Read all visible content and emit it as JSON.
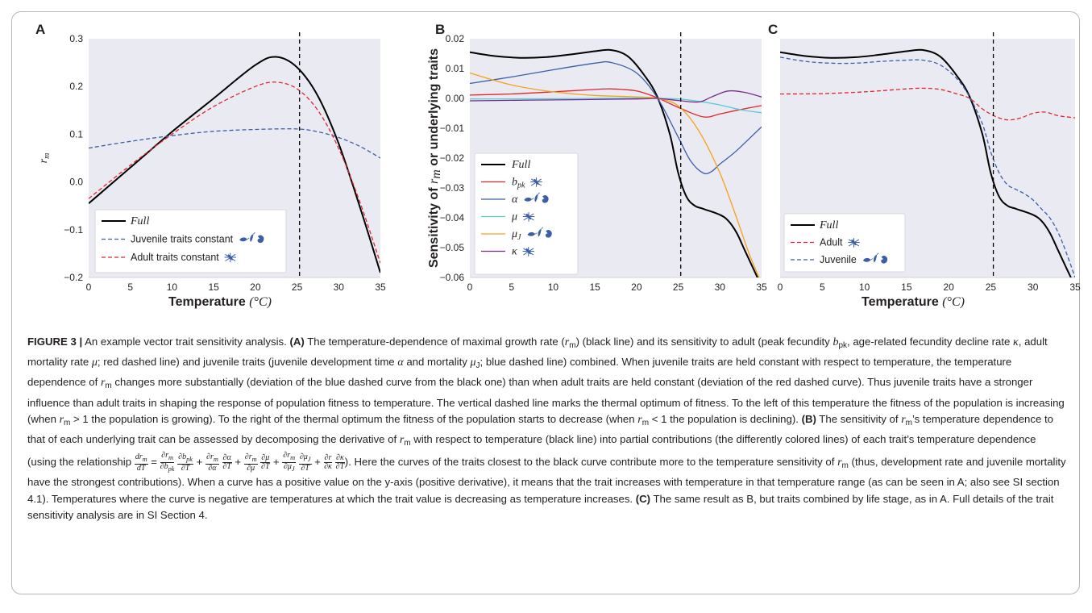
{
  "figure": {
    "panels": [
      {
        "id": "A",
        "label": "A",
        "xlabel": "Temperature",
        "xunit": "(°C)",
        "ylabel": "r_m"
      },
      {
        "id": "B",
        "label": "B",
        "xlabel": "",
        "ylabel": "Sensitivity of r_m or underlying traits"
      },
      {
        "id": "C",
        "label": "C",
        "xlabel": "Temperature",
        "xunit": "(°C)",
        "ylabel": ""
      }
    ],
    "optimum_temperature": 25.3,
    "colors": {
      "full": "#000000",
      "red": "#e0262b",
      "blue": "#3a5ea8",
      "cyan": "#5ccbd6",
      "orange": "#f6a01a",
      "purple": "#7a2a8c"
    },
    "icon_names": [
      "mosquito-larva-icon",
      "mosquito-pupa-icon",
      "adult-mosquito-icon"
    ]
  },
  "chart_data": [
    {
      "type": "line",
      "title": "",
      "xlabel": "Temperature (°C)",
      "ylabel": "r_m",
      "xlim": [
        0,
        35
      ],
      "ylim": [
        -0.2,
        0.3
      ],
      "xticks": [
        "0",
        "5",
        "10",
        "15",
        "20",
        "25",
        "30",
        "35"
      ],
      "yticks": [
        "−0.2",
        "−0.1",
        "0.0",
        "0.1",
        "0.2",
        "0.3"
      ],
      "vline": 25.3,
      "legend_position": "lower-left",
      "series": [
        {
          "name": "Full",
          "style": "solid",
          "color": "#000000",
          "x": [
            0,
            5,
            10,
            15,
            20,
            22.5,
            25,
            27.5,
            30,
            32.5,
            35
          ],
          "y": [
            -0.045,
            0.03,
            0.105,
            0.175,
            0.245,
            0.262,
            0.24,
            0.18,
            0.08,
            -0.05,
            -0.19
          ]
        },
        {
          "name": "Juvenile traits constant",
          "style": "dashed",
          "color": "#3a5ea8",
          "x": [
            0,
            5,
            10,
            15,
            20,
            25,
            27.5,
            30,
            32.5,
            35
          ],
          "y": [
            0.071,
            0.085,
            0.097,
            0.106,
            0.11,
            0.111,
            0.105,
            0.093,
            0.075,
            0.05
          ]
        },
        {
          "name": "Adult traits constant",
          "style": "dashed",
          "color": "#e0262b",
          "x": [
            0,
            5,
            10,
            15,
            20,
            22.5,
            25,
            27.5,
            30,
            32.5,
            35
          ],
          "y": [
            -0.035,
            0.035,
            0.1,
            0.158,
            0.2,
            0.209,
            0.195,
            0.15,
            0.07,
            -0.04,
            -0.17
          ]
        }
      ]
    },
    {
      "type": "line",
      "title": "",
      "xlabel": "",
      "ylabel": "Sensitivity of r_m or underlying traits",
      "xlim": [
        0,
        35
      ],
      "ylim": [
        -0.06,
        0.02
      ],
      "xticks": [
        "0",
        "5",
        "10",
        "15",
        "20",
        "25",
        "30",
        "35"
      ],
      "yticks": [
        "0.02",
        "0.01",
        "0.00",
        "−0.01",
        "−0.02",
        "−0.03",
        "−0.04",
        "−0.05",
        "−0.06"
      ],
      "vline": 25.3,
      "legend_position": "lower-left",
      "series": [
        {
          "name": "Full",
          "style": "solid",
          "color": "#000000",
          "x": [
            0,
            3,
            6,
            9,
            12,
            15,
            17,
            19,
            21,
            22.5,
            24,
            25,
            26,
            27,
            28,
            30,
            31,
            32,
            33,
            34,
            35
          ],
          "y": [
            0.0155,
            0.0142,
            0.0136,
            0.0138,
            0.0147,
            0.0158,
            0.0162,
            0.014,
            0.0075,
            0.0005,
            -0.012,
            -0.025,
            -0.033,
            -0.036,
            -0.037,
            -0.039,
            -0.041,
            -0.045,
            -0.051,
            -0.057,
            -0.063
          ]
        },
        {
          "name": "b_pk",
          "style": "solid",
          "color": "#e0262b",
          "x": [
            0,
            5,
            10,
            15,
            17,
            20,
            22.5,
            25,
            28,
            30,
            32,
            35
          ],
          "y": [
            0.0011,
            0.0015,
            0.0022,
            0.003,
            0.0032,
            0.0025,
            0.0002,
            -0.003,
            -0.0062,
            -0.0052,
            -0.004,
            -0.0024
          ]
        },
        {
          "name": "α",
          "style": "solid",
          "color": "#3a5ea8",
          "x": [
            0,
            5,
            10,
            15,
            17,
            20,
            22.5,
            25,
            26.5,
            28,
            29,
            30,
            32,
            35
          ],
          "y": [
            0.005,
            0.0072,
            0.0096,
            0.0118,
            0.012,
            0.0085,
            0.0002,
            -0.013,
            -0.021,
            -0.025,
            -0.0245,
            -0.022,
            -0.0175,
            -0.0095
          ]
        },
        {
          "name": "μ",
          "style": "solid",
          "color": "#5ccbd6",
          "x": [
            0,
            10,
            20,
            22.5,
            25,
            27.5,
            30,
            32.5,
            35
          ],
          "y": [
            -0.0002,
            -0.0001,
            0.0001,
            0.0,
            -0.0002,
            -0.001,
            -0.0022,
            -0.0038,
            -0.0048
          ]
        },
        {
          "name": "μ_J",
          "style": "solid",
          "color": "#f6a01a",
          "x": [
            0,
            5,
            10,
            15,
            20,
            22.5,
            25,
            27.5,
            30,
            32,
            33.5,
            35
          ],
          "y": [
            0.0085,
            0.0045,
            0.0022,
            0.001,
            0.0005,
            0.0,
            -0.0025,
            -0.011,
            -0.025,
            -0.04,
            -0.052,
            -0.062
          ]
        },
        {
          "name": "κ",
          "style": "solid",
          "color": "#7a2a8c",
          "x": [
            0,
            10,
            20,
            22.5,
            25,
            27.5,
            29,
            31,
            33,
            35
          ],
          "y": [
            -0.0008,
            -0.0005,
            -0.0002,
            0.0,
            -0.0007,
            -0.0012,
            0.0005,
            0.0025,
            0.002,
            0.0005
          ]
        }
      ]
    },
    {
      "type": "line",
      "title": "",
      "xlabel": "Temperature (°C)",
      "ylabel": "",
      "xlim": [
        0,
        35
      ],
      "ylim": [
        -0.06,
        0.02
      ],
      "xticks": [
        "0",
        "5",
        "10",
        "15",
        "20",
        "25",
        "30",
        "35"
      ],
      "vline": 25.3,
      "legend_position": "lower-left",
      "series": [
        {
          "name": "Full",
          "style": "solid",
          "color": "#000000",
          "x": [
            0,
            3,
            6,
            9,
            12,
            15,
            17,
            19,
            21,
            22.5,
            24,
            25,
            26,
            27,
            28,
            30,
            31,
            32,
            33,
            34,
            35
          ],
          "y": [
            0.0155,
            0.0142,
            0.0136,
            0.0138,
            0.0147,
            0.0158,
            0.0162,
            0.014,
            0.0075,
            0.0005,
            -0.012,
            -0.025,
            -0.033,
            -0.036,
            -0.037,
            -0.039,
            -0.041,
            -0.045,
            -0.051,
            -0.057,
            -0.063
          ]
        },
        {
          "name": "Adult",
          "style": "dashed",
          "color": "#e0262b",
          "x": [
            0,
            5,
            10,
            15,
            17,
            19,
            21,
            22.5,
            24,
            25.5,
            27,
            28.5,
            30,
            31.5,
            33,
            35
          ],
          "y": [
            0.0015,
            0.0016,
            0.0022,
            0.0032,
            0.0034,
            0.003,
            0.0015,
            0.0,
            -0.0035,
            -0.006,
            -0.0072,
            -0.0066,
            -0.005,
            -0.0046,
            -0.0058,
            -0.0065
          ]
        },
        {
          "name": "Juvenile",
          "style": "dashed",
          "color": "#3a5ea8",
          "x": [
            0,
            3,
            6,
            9,
            12,
            15,
            17,
            19,
            21,
            22.5,
            24,
            25,
            26,
            27,
            28,
            29,
            30,
            31,
            32,
            33,
            34,
            35
          ],
          "y": [
            0.0138,
            0.0124,
            0.0118,
            0.0118,
            0.0124,
            0.0128,
            0.0128,
            0.0112,
            0.0065,
            0.0004,
            -0.0085,
            -0.018,
            -0.025,
            -0.029,
            -0.0305,
            -0.032,
            -0.034,
            -0.037,
            -0.04,
            -0.045,
            -0.052,
            -0.06
          ]
        }
      ]
    }
  ],
  "caption": {
    "figure_label": "FIGURE 3 |",
    "text_html": " An example vector trait sensitivity analysis. <b>(A)</b> The temperature-dependence of maximal growth rate (<i>r</i><span class=\"sub\">m</span>) (black line) and its sensitivity to adult (peak fecundity <i>b</i><span class=\"sub\">pk</span>, age-related fecundity decline rate <i>κ</i>, adult mortality rate <i>μ</i>; red dashed line) and juvenile traits (juvenile development time <i>α</i> and mortality <i>μ</i><span class=\"sub\">J</span>; blue dashed line) combined. When juvenile traits are held constant with respect to temperature, the temperature dependence of <i>r</i><span class=\"sub\">m</span> changes more substantially (deviation of the blue dashed curve from the black one) than when adult traits are held constant (deviation of the red dashed curve). Thus juvenile traits have a stronger influence than adult traits in shaping the response of population fitness to temperature. The vertical dashed line marks the thermal optimum of fitness. To the left of this temperature the fitness of the population is increasing (when <i>r</i><span class=\"sub\">m</span> &gt; 1 the population is growing). To the right of the thermal optimum the fitness of the population starts to decrease (when <i>r</i><span class=\"sub\">m</span> &lt; 1 the population is declining). <b>(B)</b> The sensitivity of <i>r</i><span class=\"sub\">m</span>’s temperature dependence to that of each underlying trait can be assessed by decomposing the derivative of <i>r</i><span class=\"sub\">m</span> with respect to temperature (black line) into partial contributions (the differently colored lines) of each trait’s temperature dependence (using the relationship <span class=\"frac\"><span class=\"num\">dr<sub>m</sub></span><span>dT</span></span> = <span class=\"frac\"><span class=\"num\">∂r<sub>m</sub></span><span>∂b<sub>pk</sub></span></span> <span class=\"frac\"><span class=\"num\">∂b<sub>pk</sub></span><span>∂T</span></span> + <span class=\"frac\"><span class=\"num\">∂r<sub>m</sub></span><span>∂α</span></span> <span class=\"frac\"><span class=\"num\">∂α</span><span>∂T</span></span> + <span class=\"frac\"><span class=\"num\">∂r<sub>m</sub></span><span>∂μ</span></span> <span class=\"frac\"><span class=\"num\">∂μ</span><span>∂T</span></span> + <span class=\"frac\"><span class=\"num\">∂r<sub>m</sub></span><span>∂μ<sub>J</sub></span></span> <span class=\"frac\"><span class=\"num\">∂μ<sub>J</sub></span><span>∂T</span></span> + <span class=\"frac\"><span class=\"num\">∂r</span><span>∂κ</span></span> <span class=\"frac\"><span class=\"num\">∂κ</span><span>∂T</span></span>). Here the curves of the traits closest to the black curve contribute more to the temperature sensitivity of <i>r</i><span class=\"sub\">m</span> (thus, development rate and juvenile mortality have the strongest contributions). When a curve has a positive value on the y-axis (positive derivative), it means that the trait increases with temperature in that temperature range (as can be seen in A; also see SI section 4.1). Temperatures where the curve is negative are temperatures at which the trait value is decreasing as temperature increases. <b>(C)</b> The same result as B, but traits combined by life stage, as in A. Full details of the trait sensitivity analysis are in SI Section 4."
  }
}
